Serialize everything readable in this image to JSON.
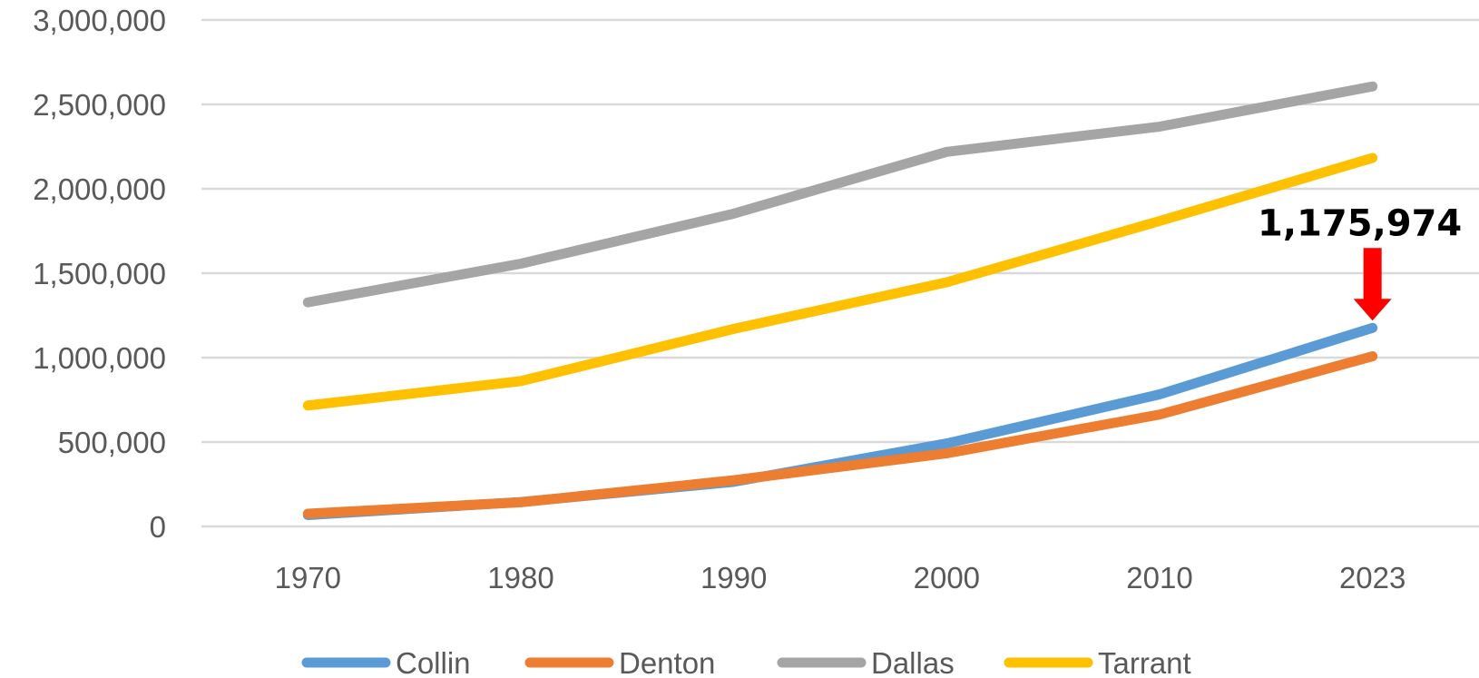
{
  "chart_data": {
    "type": "line",
    "title": "",
    "xlabel": "",
    "ylabel": "",
    "categories": [
      "1970",
      "1980",
      "1990",
      "2000",
      "2010",
      "2023"
    ],
    "ylim": [
      0,
      3000000
    ],
    "y_ticks": [
      "0",
      "500,000",
      "1,000,000",
      "1,500,000",
      "2,000,000",
      "2,500,000",
      "3,000,000"
    ],
    "grid": true,
    "legend_position": "bottom",
    "series": [
      {
        "name": "Collin",
        "color": "#5B9BD5",
        "values": [
          66920,
          144576,
          264036,
          491675,
          782341,
          1175974
        ]
      },
      {
        "name": "Denton",
        "color": "#ED7D31",
        "values": [
          75633,
          143126,
          273525,
          432976,
          662614,
          1007703
        ]
      },
      {
        "name": "Dallas",
        "color": "#A5A5A5",
        "values": [
          1327321,
          1556390,
          1852810,
          2218899,
          2368139,
          2606358
        ]
      },
      {
        "name": "Tarrant",
        "color": "#FFC000",
        "values": [
          716317,
          860880,
          1170103,
          1446219,
          1809034,
          2182947
        ]
      }
    ],
    "annotation": {
      "text": "1,175,974",
      "series": "Collin",
      "category": "2023",
      "arrow_color": "#FF0000"
    }
  }
}
